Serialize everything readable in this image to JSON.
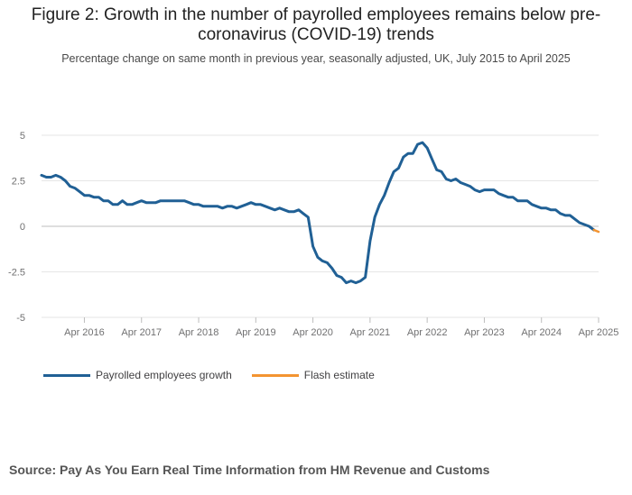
{
  "title": "Figure 2: Growth in the number of payrolled employees remains below pre-coronavirus (COVID-19) trends",
  "subtitle": "Percentage change on same month in previous year, seasonally adjusted, UK, July 2015 to April 2025",
  "source": "Source: Pay As You Earn Real Time Information from HM Revenue and Customs",
  "colors": {
    "series": "#206095",
    "flash": "#f39431",
    "grid": "#e6e6e6",
    "tick_text": "#707071"
  },
  "chart_data": {
    "type": "line",
    "title": "Figure 2: Growth in the number of payrolled employees remains below pre-coronavirus (COVID-19) trends",
    "subtitle": "Percentage change on same month in previous year, seasonally adjusted, UK, July 2015 to April 2025",
    "xlabel": "",
    "ylabel": "",
    "ylim": [
      -5,
      5
    ],
    "yticks": [
      5,
      2.5,
      0,
      -2.5,
      -5
    ],
    "ytick_labels": [
      "5",
      "2.5",
      "0",
      "-2.5",
      "-5"
    ],
    "xticks": [
      "2016-04",
      "2017-04",
      "2018-04",
      "2019-04",
      "2020-04",
      "2021-04",
      "2022-04",
      "2023-04",
      "2024-04",
      "2025-04"
    ],
    "xtick_labels": [
      "Apr 2016",
      "Apr 2017",
      "Apr 2018",
      "Apr 2019",
      "Apr 2020",
      "Apr 2021",
      "Apr 2022",
      "Apr 2023",
      "Apr 2024",
      "Apr 2025"
    ],
    "x_start": "2015-07",
    "x_end": "2025-04",
    "grid": true,
    "legend_position": "bottom-left",
    "series": [
      {
        "name": "Payrolled employees growth",
        "color": "#206095",
        "x": [
          "2015-07",
          "2015-08",
          "2015-09",
          "2015-10",
          "2015-11",
          "2015-12",
          "2016-01",
          "2016-02",
          "2016-03",
          "2016-04",
          "2016-05",
          "2016-06",
          "2016-07",
          "2016-08",
          "2016-09",
          "2016-10",
          "2016-11",
          "2016-12",
          "2017-01",
          "2017-02",
          "2017-03",
          "2017-04",
          "2017-05",
          "2017-06",
          "2017-07",
          "2017-08",
          "2017-09",
          "2017-10",
          "2017-11",
          "2017-12",
          "2018-01",
          "2018-02",
          "2018-03",
          "2018-04",
          "2018-05",
          "2018-06",
          "2018-07",
          "2018-08",
          "2018-09",
          "2018-10",
          "2018-11",
          "2018-12",
          "2019-01",
          "2019-02",
          "2019-03",
          "2019-04",
          "2019-05",
          "2019-06",
          "2019-07",
          "2019-08",
          "2019-09",
          "2019-10",
          "2019-11",
          "2019-12",
          "2020-01",
          "2020-02",
          "2020-03",
          "2020-04",
          "2020-05",
          "2020-06",
          "2020-07",
          "2020-08",
          "2020-09",
          "2020-10",
          "2020-11",
          "2020-12",
          "2021-01",
          "2021-02",
          "2021-03",
          "2021-04",
          "2021-05",
          "2021-06",
          "2021-07",
          "2021-08",
          "2021-09",
          "2021-10",
          "2021-11",
          "2021-12",
          "2022-01",
          "2022-02",
          "2022-03",
          "2022-04",
          "2022-05",
          "2022-06",
          "2022-07",
          "2022-08",
          "2022-09",
          "2022-10",
          "2022-11",
          "2022-12",
          "2023-01",
          "2023-02",
          "2023-03",
          "2023-04",
          "2023-05",
          "2023-06",
          "2023-07",
          "2023-08",
          "2023-09",
          "2023-10",
          "2023-11",
          "2023-12",
          "2024-01",
          "2024-02",
          "2024-03",
          "2024-04",
          "2024-05",
          "2024-06",
          "2024-07",
          "2024-08",
          "2024-09",
          "2024-10",
          "2024-11",
          "2024-12",
          "2025-01",
          "2025-02",
          "2025-03"
        ],
        "values": [
          2.8,
          2.7,
          2.7,
          2.8,
          2.7,
          2.5,
          2.2,
          2.1,
          1.9,
          1.7,
          1.7,
          1.6,
          1.6,
          1.4,
          1.4,
          1.2,
          1.2,
          1.4,
          1.2,
          1.2,
          1.3,
          1.4,
          1.3,
          1.3,
          1.3,
          1.4,
          1.4,
          1.4,
          1.4,
          1.4,
          1.4,
          1.3,
          1.2,
          1.2,
          1.1,
          1.1,
          1.1,
          1.1,
          1.0,
          1.1,
          1.1,
          1.0,
          1.1,
          1.2,
          1.3,
          1.2,
          1.2,
          1.1,
          1.0,
          0.9,
          1.0,
          0.9,
          0.8,
          0.8,
          0.9,
          0.7,
          0.5,
          -1.1,
          -1.7,
          -1.9,
          -2.0,
          -2.3,
          -2.7,
          -2.8,
          -3.1,
          -3.0,
          -3.1,
          -3.0,
          -2.8,
          -0.8,
          0.5,
          1.2,
          1.7,
          2.4,
          3.0,
          3.2,
          3.8,
          4.0,
          4.0,
          4.5,
          4.6,
          4.3,
          3.7,
          3.1,
          3.0,
          2.6,
          2.5,
          2.6,
          2.4,
          2.3,
          2.2,
          2.0,
          1.9,
          2.0,
          2.0,
          2.0,
          1.8,
          1.7,
          1.6,
          1.6,
          1.4,
          1.4,
          1.4,
          1.2,
          1.1,
          1.0,
          1.0,
          0.9,
          0.9,
          0.7,
          0.6,
          0.6,
          0.4,
          0.2,
          0.1,
          0.0,
          -0.2
        ]
      },
      {
        "name": "Flash estimate",
        "color": "#f39431",
        "x": [
          "2025-03",
          "2025-04"
        ],
        "values": [
          -0.2,
          -0.3
        ]
      }
    ]
  }
}
